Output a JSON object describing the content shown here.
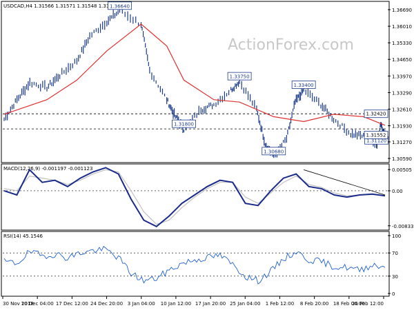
{
  "header": {
    "symbol_info": "USDCAD,H4  1.31566 1.31571 1.31548 1.31552"
  },
  "watermark": "ActionForex.com",
  "colors": {
    "price": "#1a3a8a",
    "ma": "#e03030",
    "macd": "#1a2a8a",
    "signal": "#c0c0c0",
    "rsi": "#2060d0",
    "box_border": "#1a3a8a"
  },
  "chart_data": [
    {
      "type": "line",
      "title": "USDCAD,H4",
      "y_ticks": [
        "1.36690",
        "1.36010",
        "1.35330",
        "1.34650",
        "1.33970",
        "1.33290",
        "1.32610",
        "1.31930",
        "1.31270",
        "1.30590"
      ],
      "ylim": [
        1.3059,
        1.3669
      ],
      "price_series": [
        {
          "x": "30 Nov 2018",
          "y": 1.322
        },
        {
          "x": "3 Dec 2018",
          "y": 1.33
        },
        {
          "x": "6 Dec 2018",
          "y": 1.337
        },
        {
          "x": "10 Dec 2018",
          "y": 1.335
        },
        {
          "x": "13 Dec 2018",
          "y": 1.34
        },
        {
          "x": "17 Dec 2018",
          "y": 1.346
        },
        {
          "x": "20 Dec 2018",
          "y": 1.356
        },
        {
          "x": "24 Dec 2018",
          "y": 1.362
        },
        {
          "x": "27 Dec 2018",
          "y": 1.3664
        },
        {
          "x": "1 Jan 2019",
          "y": 1.361
        },
        {
          "x": "3 Jan 2019",
          "y": 1.342
        },
        {
          "x": "7 Jan 2019",
          "y": 1.33
        },
        {
          "x": "9 Jan 2019",
          "y": 1.323
        },
        {
          "x": "11 Jan 2019",
          "y": 1.318
        },
        {
          "x": "15 Jan 2019",
          "y": 1.326
        },
        {
          "x": "18 Jan 2019",
          "y": 1.328
        },
        {
          "x": "22 Jan 2019",
          "y": 1.334
        },
        {
          "x": "24 Jan 2019",
          "y": 1.3375
        },
        {
          "x": "28 Jan 2019",
          "y": 1.326
        },
        {
          "x": "30 Jan 2019",
          "y": 1.312
        },
        {
          "x": "1 Feb 2019",
          "y": 1.3068
        },
        {
          "x": "4 Feb 2019",
          "y": 1.314
        },
        {
          "x": "6 Feb 2019",
          "y": 1.329
        },
        {
          "x": "8 Feb 2019",
          "y": 1.334
        },
        {
          "x": "12 Feb 2019",
          "y": 1.328
        },
        {
          "x": "15 Feb 2019",
          "y": 1.322
        },
        {
          "x": "19 Feb 2019",
          "y": 1.316
        },
        {
          "x": "22 Feb 2019",
          "y": 1.315
        },
        {
          "x": "25 Feb 2019",
          "y": 1.3112
        },
        {
          "x": "26 Feb 2019",
          "y": 1.32
        },
        {
          "x": "27 Feb 2019",
          "y": 1.3155
        }
      ],
      "ma_series": [
        {
          "x": "30 Nov 2018",
          "y": 1.324
        },
        {
          "x": "10 Dec 2018",
          "y": 1.33
        },
        {
          "x": "17 Dec 2018",
          "y": 1.338
        },
        {
          "x": "24 Dec 2018",
          "y": 1.35
        },
        {
          "x": "1 Jan 2019",
          "y": 1.361
        },
        {
          "x": "7 Jan 2019",
          "y": 1.352
        },
        {
          "x": "11 Jan 2019",
          "y": 1.338
        },
        {
          "x": "18 Jan 2019",
          "y": 1.33
        },
        {
          "x": "24 Jan 2019",
          "y": 1.329
        },
        {
          "x": "1 Feb 2019",
          "y": 1.323
        },
        {
          "x": "8 Feb 2019",
          "y": 1.321
        },
        {
          "x": "15 Feb 2019",
          "y": 1.324
        },
        {
          "x": "22 Feb 2019",
          "y": 1.323
        },
        {
          "x": "27 Feb 2019",
          "y": 1.3195
        }
      ],
      "dashed_levels": [
        1.3242,
        1.318
      ],
      "annotations": [
        {
          "label": "1.36640",
          "x": "27 Dec 2018",
          "y": 1.3664
        },
        {
          "label": "1.33750",
          "x": "24 Jan 2019",
          "y": 1.3375
        },
        {
          "label": "1.31800",
          "x": "11 Jan 2019",
          "y": 1.318
        },
        {
          "label": "1.30680",
          "x": "1 Feb 2019",
          "y": 1.3068
        },
        {
          "label": "1.33400",
          "x": "8 Feb 2019",
          "y": 1.334
        },
        {
          "label": "1.31120",
          "x": "25 Feb 2019",
          "y": 1.3112
        }
      ],
      "price_labels": [
        "1.32420",
        "1.31552"
      ],
      "price_label_values": [
        1.3242,
        1.31552
      ]
    },
    {
      "type": "line",
      "title": "MACD(12,26,9) -0.001197 -0.001123",
      "y_ticks": [
        "0.00505",
        "0.00",
        "-0.008332"
      ],
      "ylim": [
        -0.0087,
        0.0054
      ],
      "series": [
        {
          "name": "MACD",
          "values": [
            0.0,
            -0.001,
            0.005,
            0.002,
            0.0025,
            0.001,
            0.003,
            0.0045,
            0.0055,
            0.004,
            -0.002,
            -0.007,
            -0.0085,
            -0.006,
            -0.003,
            -0.001,
            0.001,
            0.0025,
            0.002,
            -0.003,
            -0.0035,
            0.0,
            0.003,
            0.004,
            0.001,
            0.0005,
            -0.001,
            -0.0015,
            -0.001,
            -0.0008,
            -0.0012
          ]
        },
        {
          "name": "Signal",
          "values": [
            0.0005,
            0.0,
            0.0035,
            0.003,
            0.0025,
            0.0015,
            0.0025,
            0.004,
            0.005,
            0.0045,
            0.0,
            -0.005,
            -0.008,
            -0.007,
            -0.004,
            -0.0015,
            0.0005,
            0.002,
            0.002,
            -0.0015,
            -0.003,
            -0.0005,
            0.002,
            0.0035,
            0.0015,
            0.0008,
            -0.0005,
            -0.0012,
            -0.001,
            -0.0009,
            -0.0011
          ]
        }
      ],
      "trendline": [
        {
          "x": "8 Feb 2019",
          "y": 0.005
        },
        {
          "x": "27 Feb 2019",
          "y": -0.001
        }
      ]
    },
    {
      "type": "line",
      "title": "RSI(14) 45.1546",
      "y_ticks": [
        "100",
        "70",
        "30",
        "0"
      ],
      "ylim": [
        0,
        100
      ],
      "levels": [
        70,
        30
      ],
      "series": [
        {
          "name": "RSI",
          "values": [
            55,
            52,
            72,
            65,
            68,
            62,
            70,
            74,
            76,
            62,
            35,
            22,
            26,
            40,
            52,
            58,
            62,
            66,
            50,
            30,
            22,
            38,
            60,
            72,
            58,
            55,
            46,
            45,
            40,
            50,
            45
          ]
        }
      ]
    }
  ],
  "x_axis_labels": [
    "30 Nov 2018",
    "10 Dec 04:00",
    "17 Dec 12:00",
    "24 Dec 20:00",
    "3 Jan 04:00",
    "10 Jan 12:00",
    "17 Jan 20:00",
    "25 Jan 04:00",
    "1 Feb 12:00",
    "8 Feb 20:00",
    "18 Feb 04:00",
    "25 Feb 12:00"
  ]
}
